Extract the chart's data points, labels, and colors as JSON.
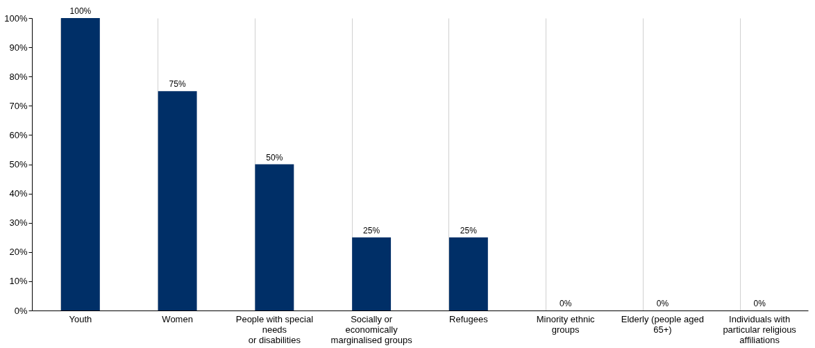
{
  "chart_data": {
    "type": "bar",
    "categories": [
      "Youth",
      "Women",
      "People with special\nneeds\nor disabilities",
      "Socially or\neconomically\nmarginalised groups",
      "Refugees",
      "Minority ethnic\ngroups",
      "Elderly (people aged\n65+)",
      "Individuals with\nparticular religious\naffiliations"
    ],
    "values": [
      100,
      75,
      50,
      25,
      25,
      0,
      0,
      0
    ],
    "value_labels": [
      "100%",
      "75%",
      "50%",
      "25%",
      "25%",
      "0%",
      "0%",
      "0%"
    ],
    "color": "#002f67",
    "ylim": [
      0,
      100
    ],
    "yticks": [
      {
        "value": 0,
        "label": "0%"
      },
      {
        "value": 10,
        "label": "10%"
      },
      {
        "value": 20,
        "label": "20%"
      },
      {
        "value": 30,
        "label": "30%"
      },
      {
        "value": 40,
        "label": "40%"
      },
      {
        "value": 50,
        "label": "50%"
      },
      {
        "value": 60,
        "label": "60%"
      },
      {
        "value": 70,
        "label": "70%"
      },
      {
        "value": 80,
        "label": "80%"
      },
      {
        "value": 90,
        "label": "90%"
      },
      {
        "value": 100,
        "label": "100%"
      }
    ],
    "grid": "x"
  }
}
